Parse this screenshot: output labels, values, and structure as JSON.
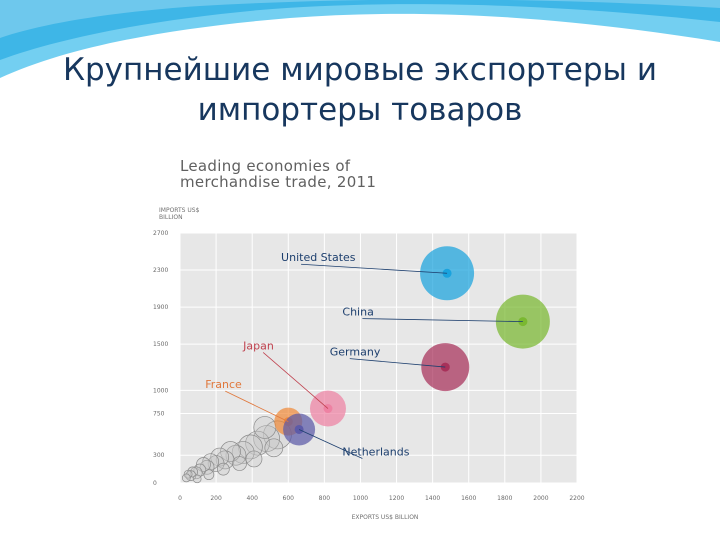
{
  "slide": {
    "title_line1": "Крупнейшие мировые экспортеры и",
    "title_line2": "импортеры товаров"
  },
  "colors": {
    "title_text": "#17375e",
    "swoosh": "#5bc7ef",
    "plot_bg": "#e7e7e7",
    "label_text": "#1d3f6e"
  },
  "chart_data": {
    "type": "scatter",
    "title": "Leading economies of merchandise trade, 2011",
    "title_line1": "Leading economies of",
    "title_line2": "merchandise trade, 2011",
    "xlabel": "EXPORTS US$ BILLION",
    "ylabel": "IMPORTS US$ BILLION",
    "xlim": [
      0,
      2200
    ],
    "ylim": [
      0,
      2700
    ],
    "xticks": [
      0,
      200,
      400,
      600,
      800,
      1000,
      1200,
      1400,
      1600,
      1800,
      2000,
      2200
    ],
    "yticks": [
      0,
      300,
      750,
      1000,
      1500,
      1900,
      2300,
      2700
    ],
    "grid": true,
    "points": [
      {
        "name": "United States",
        "x": 1480,
        "y": 2265,
        "r": 27,
        "color": "#1aa3de"
      },
      {
        "name": "China",
        "x": 1900,
        "y": 1743,
        "r": 27,
        "color": "#7ab831"
      },
      {
        "name": "Germany",
        "x": 1470,
        "y": 1252,
        "r": 24,
        "color": "#a8315a"
      },
      {
        "name": "Japan",
        "x": 820,
        "y": 804,
        "r": 18,
        "color": "#ee82a3"
      },
      {
        "name": "France",
        "x": 600,
        "y": 663,
        "r": 14,
        "color": "#f08a3a"
      },
      {
        "name": "Netherlands",
        "x": 660,
        "y": 578,
        "r": 16,
        "color": "#5c5aa8"
      }
    ],
    "labels": [
      {
        "name": "United States",
        "x": 560,
        "y": 2395,
        "color": "#1d3f6e"
      },
      {
        "name": "China",
        "x": 900,
        "y": 1808,
        "color": "#1d3f6e"
      },
      {
        "name": "Germany",
        "x": 830,
        "y": 1376,
        "color": "#1d3f6e"
      },
      {
        "name": "Japan",
        "x": 350,
        "y": 1443,
        "color": "#c0424f"
      },
      {
        "name": "France",
        "x": 140,
        "y": 1025,
        "color": "#e0783c"
      },
      {
        "name": "Netherlands",
        "x": 900,
        "y": 297,
        "color": "#1d3f6e"
      }
    ],
    "background_points": [
      {
        "x": 540,
        "y": 520,
        "r": 14
      },
      {
        "x": 480,
        "y": 480,
        "r": 13
      },
      {
        "x": 430,
        "y": 430,
        "r": 12
      },
      {
        "x": 390,
        "y": 390,
        "r": 12
      },
      {
        "x": 350,
        "y": 330,
        "r": 11
      },
      {
        "x": 310,
        "y": 300,
        "r": 10
      },
      {
        "x": 280,
        "y": 340,
        "r": 10
      },
      {
        "x": 250,
        "y": 250,
        "r": 9
      },
      {
        "x": 220,
        "y": 280,
        "r": 9
      },
      {
        "x": 200,
        "y": 210,
        "r": 8
      },
      {
        "x": 170,
        "y": 230,
        "r": 8
      },
      {
        "x": 150,
        "y": 170,
        "r": 7
      },
      {
        "x": 130,
        "y": 200,
        "r": 7
      },
      {
        "x": 110,
        "y": 140,
        "r": 6
      },
      {
        "x": 90,
        "y": 110,
        "r": 6
      },
      {
        "x": 70,
        "y": 120,
        "r": 5
      },
      {
        "x": 60,
        "y": 80,
        "r": 5
      },
      {
        "x": 45,
        "y": 95,
        "r": 4
      },
      {
        "x": 35,
        "y": 55,
        "r": 4
      },
      {
        "x": 160,
        "y": 90,
        "r": 5
      },
      {
        "x": 240,
        "y": 150,
        "r": 6
      },
      {
        "x": 330,
        "y": 210,
        "r": 7
      },
      {
        "x": 410,
        "y": 260,
        "r": 8
      },
      {
        "x": 470,
        "y": 600,
        "r": 11
      },
      {
        "x": 520,
        "y": 380,
        "r": 9
      },
      {
        "x": 95,
        "y": 45,
        "r": 4
      }
    ]
  }
}
